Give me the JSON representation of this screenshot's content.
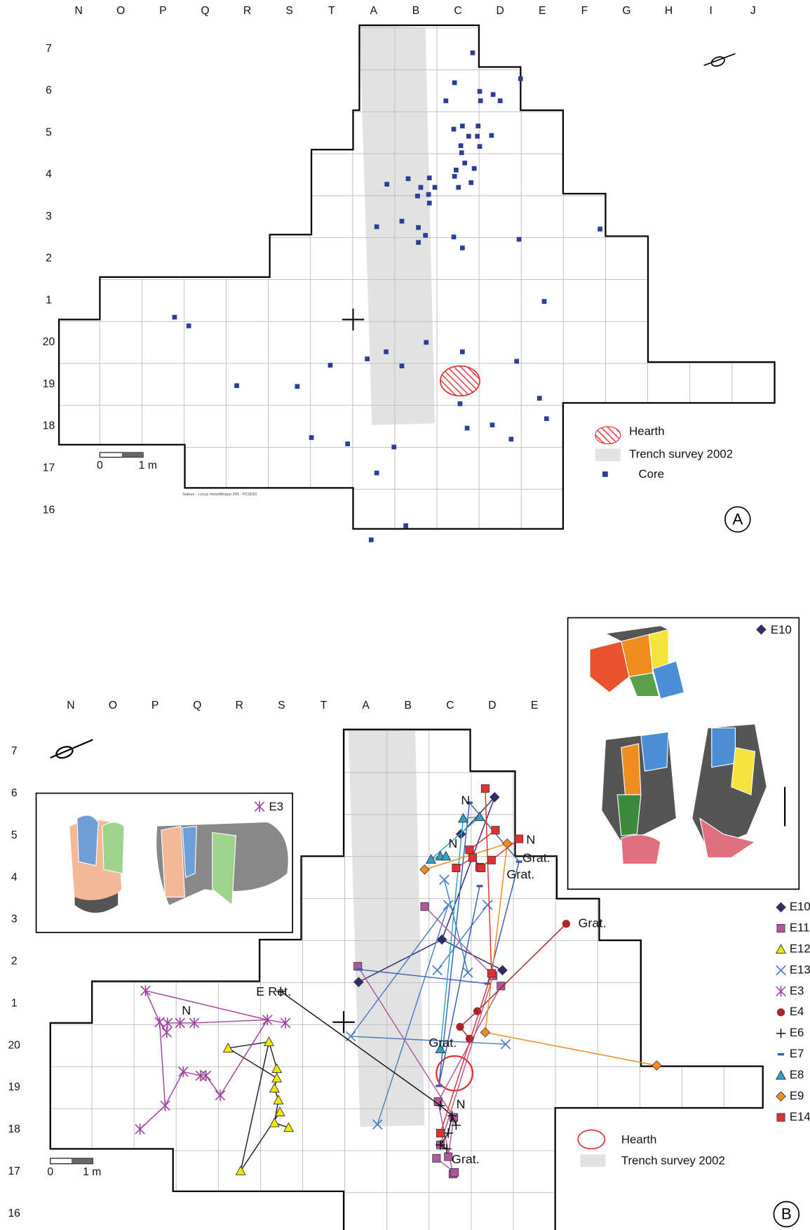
{
  "panel_a": {
    "columns": [
      "N",
      "O",
      "P",
      "Q",
      "R",
      "S",
      "T",
      "A",
      "B",
      "C",
      "D",
      "E",
      "F",
      "G",
      "H",
      "I",
      "J"
    ],
    "rows": [
      "7",
      "6",
      "5",
      "4",
      "3",
      "2",
      "1",
      "20",
      "19",
      "18",
      "17",
      "16"
    ],
    "legend": [
      "Hearth",
      "Trench survey 2002",
      "Core"
    ],
    "scale": [
      "0",
      "1 m"
    ],
    "credit": "Saleux - Locus mésolithique 295 - PC2010",
    "label": "A"
  },
  "panel_b": {
    "columns": [
      "N",
      "O",
      "P",
      "Q",
      "R",
      "S",
      "T",
      "A",
      "B",
      "C",
      "D",
      "E"
    ],
    "rows": [
      "7",
      "6",
      "5",
      "4",
      "3",
      "2",
      "1",
      "20",
      "19",
      "18",
      "17",
      "16"
    ],
    "legend": [
      "Hearth",
      "Trench survey 2002"
    ],
    "series": [
      {
        "name": "E10",
        "color": "#2f2d6e",
        "marker": "diamond"
      },
      {
        "name": "E11",
        "color": "#b5559b",
        "marker": "square"
      },
      {
        "name": "E12",
        "color": "#f2e600",
        "marker": "triangle"
      },
      {
        "name": "E13",
        "color": "#4a7cc4",
        "marker": "x"
      },
      {
        "name": "E3",
        "color": "#a040a0",
        "marker": "asterisk"
      },
      {
        "name": "E4",
        "color": "#a8252a",
        "marker": "circle"
      },
      {
        "name": "E6",
        "color": "#111111",
        "marker": "plus"
      },
      {
        "name": "E7",
        "color": "#3a5fb0",
        "marker": "dash"
      },
      {
        "name": "E8",
        "color": "#2ba3c4",
        "marker": "triangle"
      },
      {
        "name": "E9",
        "color": "#f08c20",
        "marker": "diamond"
      },
      {
        "name": "E14",
        "color": "#e03030",
        "marker": "square"
      }
    ],
    "annotations": [
      "N",
      "N",
      "N",
      "Grat.",
      "Grat.",
      "Grat.",
      "E Ret.",
      "N",
      "Grat.",
      "N",
      "Grat."
    ],
    "insets": [
      "E3",
      "E10"
    ],
    "scale": [
      "0",
      "1 m"
    ],
    "label": "B"
  }
}
